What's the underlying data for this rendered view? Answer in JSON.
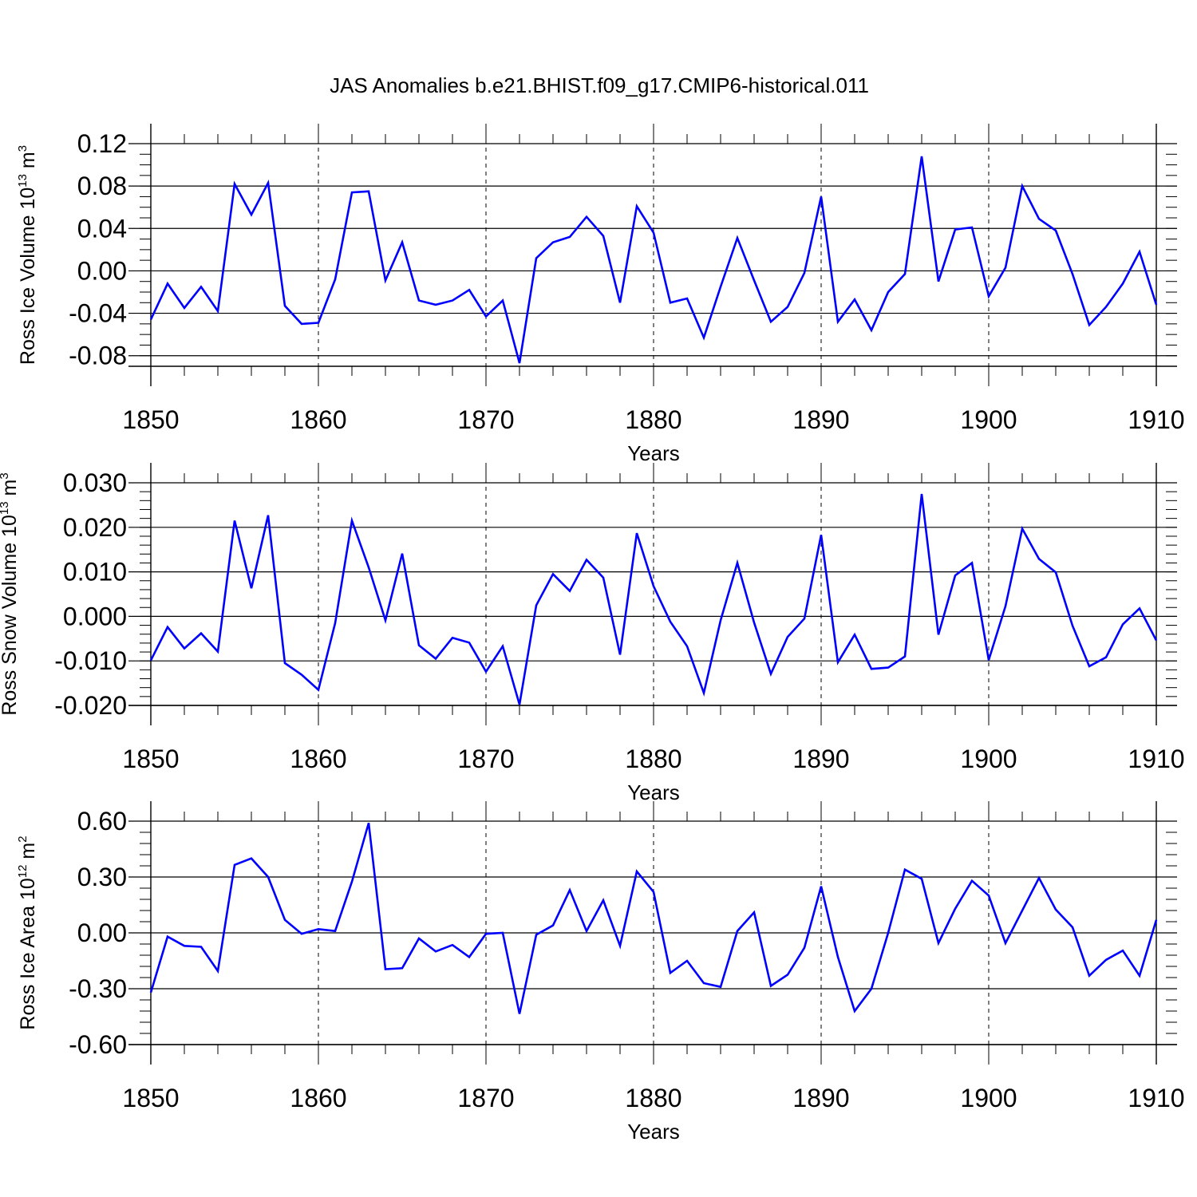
{
  "title": "JAS Anomalies b.e21.BHIST.f09_g17.CMIP6-historical.011",
  "line_color": "#0000ff",
  "chart_data": [
    {
      "type": "line",
      "title": "JAS Anomalies b.e21.BHIST.f09_g17.CMIP6-historical.011",
      "xlabel": "Years",
      "ylabel": "Ross Ice Volume 10",
      "ylabel_exp": "13",
      "ylabel_unit": " m",
      "ylabel_unit_exp": "3",
      "xlim": [
        1850,
        1910
      ],
      "ylim": [
        -0.09,
        0.12
      ],
      "xticks": [
        "1850",
        "1860",
        "1870",
        "1880",
        "1890",
        "1900",
        "1910"
      ],
      "yticks": [
        "0.12",
        "0.08",
        "0.04",
        "0.00",
        "-0.04",
        "-0.08"
      ],
      "ytick_values": [
        0.12,
        0.08,
        0.04,
        0.0,
        -0.04,
        -0.08
      ],
      "yminor_step": 0.01,
      "grid": "dashed vertical lines at 1860, 1870, 1880, 1890, 1900",
      "series": [
        {
          "name": "Ross Ice Volume",
          "x": [
            1850,
            1851,
            1852,
            1853,
            1854,
            1855,
            1856,
            1857,
            1858,
            1859,
            1860,
            1861,
            1862,
            1863,
            1864,
            1865,
            1866,
            1867,
            1868,
            1869,
            1870,
            1871,
            1872,
            1873,
            1874,
            1875,
            1876,
            1877,
            1878,
            1879,
            1880,
            1881,
            1882,
            1883,
            1884,
            1885,
            1886,
            1887,
            1888,
            1889,
            1890,
            1891,
            1892,
            1893,
            1894,
            1895,
            1896,
            1897,
            1898,
            1899,
            1900,
            1901,
            1902,
            1903,
            1904,
            1905,
            1906,
            1907,
            1908,
            1909,
            1910
          ],
          "values": [
            -0.046,
            -0.012,
            -0.035,
            -0.015,
            -0.038,
            0.082,
            0.053,
            0.083,
            -0.033,
            -0.05,
            -0.049,
            -0.008,
            0.074,
            0.075,
            -0.009,
            0.027,
            -0.028,
            -0.032,
            -0.028,
            -0.018,
            -0.043,
            -0.028,
            -0.087,
            0.012,
            0.027,
            0.032,
            0.051,
            0.033,
            -0.03,
            0.061,
            0.036,
            -0.03,
            -0.026,
            -0.063,
            -0.015,
            0.031,
            -0.009,
            -0.048,
            -0.034,
            -0.002,
            0.07,
            -0.048,
            -0.027,
            -0.056,
            -0.02,
            -0.003,
            0.108,
            -0.01,
            0.039,
            0.041,
            -0.024,
            0.003,
            0.08,
            0.049,
            0.038,
            -0.003,
            -0.051,
            -0.034,
            -0.012,
            0.018,
            -0.032
          ]
        }
      ]
    },
    {
      "type": "line",
      "xlabel": "Years",
      "ylabel": "Ross Snow Volume 10",
      "ylabel_exp": "13",
      "ylabel_unit": " m",
      "ylabel_unit_exp": "3",
      "xlim": [
        1850,
        1910
      ],
      "ylim": [
        -0.02,
        0.03
      ],
      "xticks": [
        "1850",
        "1860",
        "1870",
        "1880",
        "1890",
        "1900",
        "1910"
      ],
      "yticks": [
        "0.030",
        "0.020",
        "0.010",
        "0.000",
        "-0.010",
        "-0.020"
      ],
      "ytick_values": [
        0.03,
        0.02,
        0.01,
        0.0,
        -0.01,
        -0.02
      ],
      "yminor_step": 0.002,
      "grid": "dashed vertical lines at 1860, 1870, 1880, 1890, 1900",
      "series": [
        {
          "name": "Ross Snow Volume",
          "x": [
            1850,
            1851,
            1852,
            1853,
            1854,
            1855,
            1856,
            1857,
            1858,
            1859,
            1860,
            1861,
            1862,
            1863,
            1864,
            1865,
            1866,
            1867,
            1868,
            1869,
            1870,
            1871,
            1872,
            1873,
            1874,
            1875,
            1876,
            1877,
            1878,
            1879,
            1880,
            1881,
            1882,
            1883,
            1884,
            1885,
            1886,
            1887,
            1888,
            1889,
            1890,
            1891,
            1892,
            1893,
            1894,
            1895,
            1896,
            1897,
            1898,
            1899,
            1900,
            1901,
            1902,
            1903,
            1904,
            1905,
            1906,
            1907,
            1908,
            1909,
            1910
          ],
          "values": [
            -0.0099,
            -0.0024,
            -0.0072,
            -0.0038,
            -0.0079,
            0.0215,
            0.0063,
            0.0227,
            -0.0105,
            -0.0131,
            -0.0165,
            -0.0015,
            0.0215,
            0.011,
            -0.0009,
            0.0141,
            -0.0065,
            -0.0095,
            -0.0048,
            -0.0059,
            -0.0124,
            -0.0067,
            -0.0198,
            0.0025,
            0.0095,
            0.0057,
            0.0127,
            0.0087,
            -0.0086,
            0.0187,
            0.0068,
            -0.0012,
            -0.0067,
            -0.0172,
            -0.0009,
            0.012,
            -0.0014,
            -0.0129,
            -0.0046,
            -0.0005,
            0.0183,
            -0.0103,
            -0.0041,
            -0.0118,
            -0.0115,
            -0.009,
            0.0275,
            -0.0041,
            0.0092,
            0.012,
            -0.0098,
            0.0023,
            0.0197,
            0.0129,
            0.0099,
            -0.0021,
            -0.0112,
            -0.0092,
            -0.0018,
            0.0018,
            -0.0054
          ]
        }
      ]
    },
    {
      "type": "line",
      "xlabel": "Years",
      "ylabel": "Ross Ice Area 10",
      "ylabel_exp": "12",
      "ylabel_unit": " m",
      "ylabel_unit_exp": "2",
      "xlim": [
        1850,
        1910
      ],
      "ylim": [
        -0.6,
        0.6
      ],
      "xticks": [
        "1850",
        "1860",
        "1870",
        "1880",
        "1890",
        "1900",
        "1910"
      ],
      "yticks": [
        "0.60",
        "0.30",
        "0.00",
        "-0.30",
        "-0.60"
      ],
      "ytick_values": [
        0.6,
        0.3,
        0.0,
        -0.3,
        -0.6
      ],
      "yminor_step": 0.06,
      "grid": "dashed vertical lines at 1860, 1870, 1880, 1890, 1900",
      "series": [
        {
          "name": "Ross Ice Area",
          "x": [
            1850,
            1851,
            1852,
            1853,
            1854,
            1855,
            1856,
            1857,
            1858,
            1859,
            1860,
            1861,
            1862,
            1863,
            1864,
            1865,
            1866,
            1867,
            1868,
            1869,
            1870,
            1871,
            1872,
            1873,
            1874,
            1875,
            1876,
            1877,
            1878,
            1879,
            1880,
            1881,
            1882,
            1883,
            1884,
            1885,
            1886,
            1887,
            1888,
            1889,
            1890,
            1891,
            1892,
            1893,
            1894,
            1895,
            1896,
            1897,
            1898,
            1899,
            1900,
            1901,
            1902,
            1903,
            1904,
            1905,
            1906,
            1907,
            1908,
            1909,
            1910
          ],
          "values": [
            -0.32,
            -0.02,
            -0.07,
            -0.075,
            -0.205,
            0.365,
            0.4,
            0.3,
            0.07,
            -0.005,
            0.02,
            0.01,
            0.275,
            0.59,
            -0.195,
            -0.19,
            -0.03,
            -0.1,
            -0.065,
            -0.13,
            -0.005,
            0.0,
            -0.435,
            -0.01,
            0.04,
            0.23,
            0.01,
            0.175,
            -0.07,
            0.33,
            0.22,
            -0.215,
            -0.15,
            -0.27,
            -0.29,
            0.01,
            0.11,
            -0.285,
            -0.225,
            -0.08,
            0.25,
            -0.13,
            -0.42,
            -0.3,
            0.0,
            0.34,
            0.29,
            -0.055,
            0.13,
            0.28,
            0.2,
            -0.055,
            0.12,
            0.295,
            0.125,
            0.03,
            -0.23,
            -0.145,
            -0.095,
            -0.23,
            0.07
          ]
        }
      ]
    }
  ]
}
